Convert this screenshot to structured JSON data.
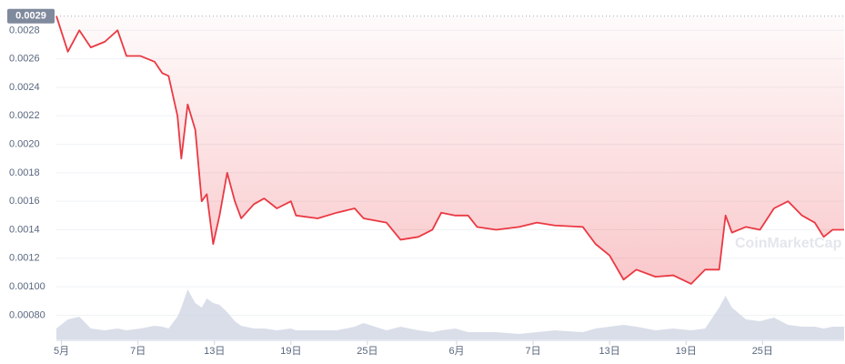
{
  "chart_data": {
    "type": "line",
    "x": [
      0.6,
      1.5,
      2.4,
      3.3,
      4.4,
      5.4,
      6.1,
      7.2,
      8.3,
      8.9,
      9.4,
      10.1,
      10.4,
      10.9,
      11.5,
      12.0,
      12.4,
      12.9,
      13.4,
      14.0,
      14.6,
      15.1,
      16.1,
      16.9,
      17.9,
      19.0,
      19.4,
      21.1,
      22.6,
      24.0,
      24.7,
      26.5,
      27.6,
      29.0,
      30.1,
      30.8,
      31.9,
      32.9,
      33.6,
      35.1,
      36.9,
      38.3,
      39.7,
      41.9,
      42.9,
      44.0,
      45.1,
      46.1,
      47.6,
      49.0,
      50.4,
      51.5,
      52.6,
      53.1,
      53.6,
      54.7,
      55.8,
      56.9,
      58.0,
      59.1,
      60.1,
      60.8,
      61.5,
      62.4
    ],
    "series": [
      {
        "color": "#ea3943",
        "values": [
          0.0029,
          0.00265,
          0.0028,
          0.00268,
          0.00272,
          0.0028,
          0.00262,
          0.00262,
          0.00258,
          0.0025,
          0.00248,
          0.0022,
          0.0019,
          0.00228,
          0.0021,
          0.0016,
          0.00165,
          0.0013,
          0.0015,
          0.0018,
          0.0016,
          0.00148,
          0.00158,
          0.00162,
          0.00155,
          0.0016,
          0.0015,
          0.00148,
          0.00152,
          0.00155,
          0.00148,
          0.00145,
          0.00133,
          0.00135,
          0.0014,
          0.00152,
          0.0015,
          0.0015,
          0.00142,
          0.0014,
          0.00142,
          0.00145,
          0.00143,
          0.00142,
          0.0013,
          0.00122,
          0.00105,
          0.00112,
          0.00107,
          0.00108,
          0.00102,
          0.00112,
          0.00112,
          0.0015,
          0.00138,
          0.00142,
          0.0014,
          0.00155,
          0.0016,
          0.0015,
          0.00145,
          0.00135,
          0.0014,
          0.0014
        ]
      },
      {
        "color": "#cfd6e4",
        "values": [
          12,
          22,
          25,
          12,
          10,
          12,
          10,
          12,
          15,
          14,
          12,
          25,
          35,
          55,
          40,
          35,
          45,
          40,
          38,
          30,
          20,
          15,
          12,
          12,
          10,
          12,
          10,
          10,
          10,
          14,
          18,
          10,
          14,
          10,
          8,
          10,
          12,
          8,
          8,
          8,
          6,
          8,
          10,
          8,
          12,
          14,
          16,
          14,
          10,
          12,
          10,
          12,
          35,
          48,
          35,
          22,
          20,
          24,
          16,
          14,
          14,
          12,
          14,
          14
        ]
      }
    ],
    "xlim": [
      0.6,
      62.4
    ],
    "xticks": [
      {
        "value": 1,
        "label": "5月"
      },
      {
        "value": 7,
        "label": "7日"
      },
      {
        "value": 13,
        "label": "13日"
      },
      {
        "value": 19,
        "label": "19日"
      },
      {
        "value": 25,
        "label": "25日"
      },
      {
        "value": 32,
        "label": "6月"
      },
      {
        "value": 38,
        "label": "7日"
      },
      {
        "value": 44,
        "label": "13日"
      },
      {
        "value": 50,
        "label": "19日"
      },
      {
        "value": 56,
        "label": "25日"
      }
    ],
    "ylim": [
      0.00063,
      0.00293
    ],
    "yticks": [
      {
        "value": 0.0008,
        "label": "0.00080"
      },
      {
        "value": 0.001,
        "label": "0.00100"
      },
      0.0012,
      0.0014,
      0.0016,
      0.0018,
      {
        "value": 0.002,
        "label": "0.0020"
      },
      0.0022,
      0.0024,
      0.0026,
      0.0028
    ],
    "grid": true,
    "price_marker": 0.0029,
    "watermark": "CoinMarketCap"
  }
}
